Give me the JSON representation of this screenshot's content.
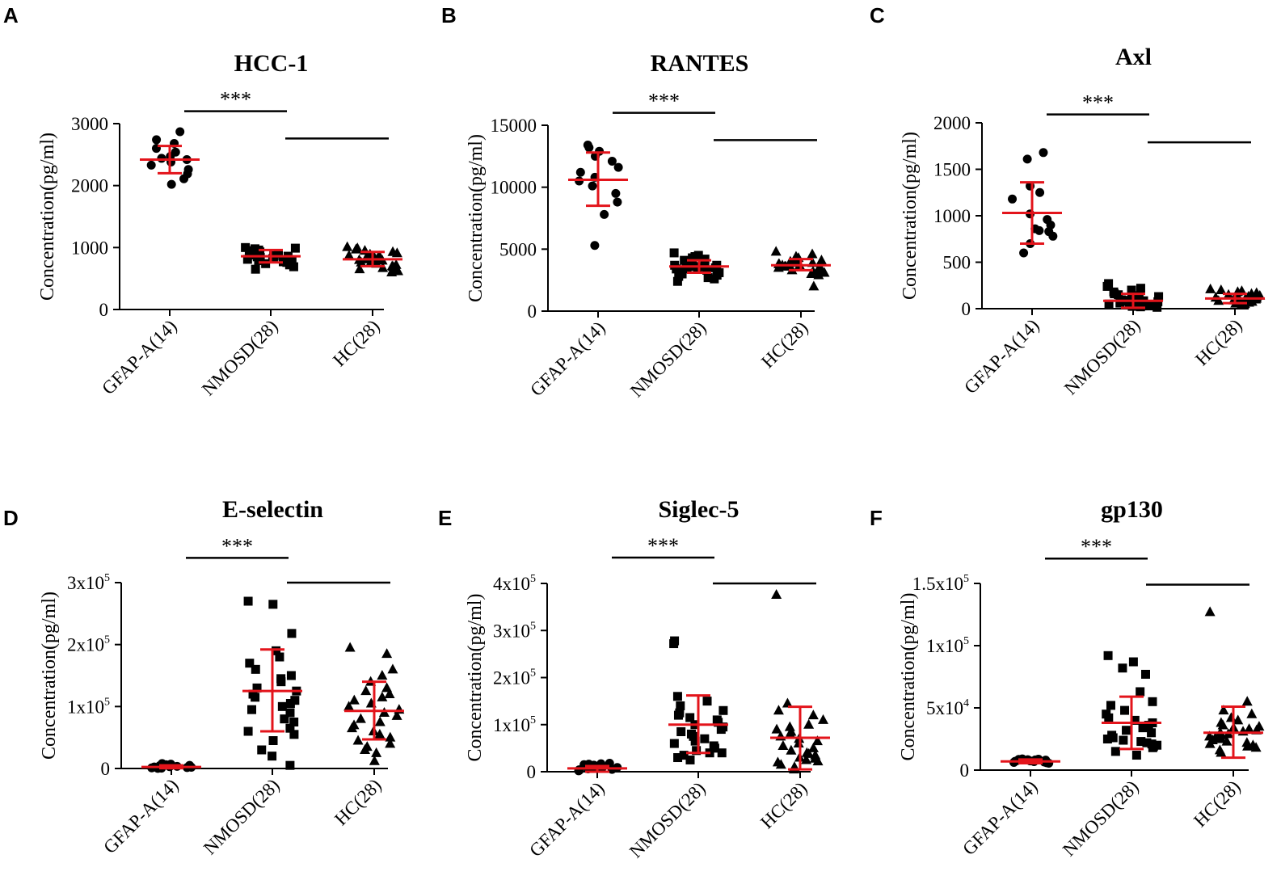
{
  "figure": {
    "colors": {
      "mean_sd": "#e3141b",
      "points": "#000000",
      "axis": "#000000"
    },
    "groups": [
      "GFAP-A(14)",
      "NMOSD(28)",
      "HC(28)"
    ],
    "significance": "***"
  },
  "chart_data": [
    {
      "panel": "A",
      "type": "scatter",
      "title": "HCC-1",
      "ylabel": "Concentration(pg/ml)",
      "xlabel": "",
      "ylim": [
        0,
        3000
      ],
      "yticks": [
        {
          "v": 0,
          "label": "0"
        },
        {
          "v": 1000,
          "label": "1000"
        },
        {
          "v": 2000,
          "label": "2000"
        },
        {
          "v": 3000,
          "label": "3000"
        }
      ],
      "categories": [
        "GFAP-A(14)",
        "NMOSD(28)",
        "HC(28)"
      ],
      "series": [
        {
          "name": "GFAP-A(14)",
          "marker": "circle",
          "mean": 2420,
          "sd_low": 2200,
          "sd_high": 2640,
          "values": [
            2870,
            2740,
            2680,
            2600,
            2540,
            2470,
            2440,
            2420,
            2380,
            2330,
            2260,
            2190,
            2110,
            2020
          ]
        },
        {
          "name": "NMOSD(28)",
          "marker": "square",
          "mean": 860,
          "sd_low": 760,
          "sd_high": 960,
          "values": [
            1000,
            990,
            980,
            960,
            950,
            930,
            920,
            910,
            900,
            890,
            880,
            870,
            860,
            860,
            850,
            840,
            830,
            820,
            810,
            800,
            790,
            780,
            770,
            760,
            740,
            720,
            690,
            650
          ]
        },
        {
          "name": "HC(28)",
          "marker": "triangle",
          "mean": 810,
          "sd_low": 700,
          "sd_high": 930,
          "values": [
            1010,
            990,
            970,
            950,
            930,
            910,
            890,
            870,
            860,
            850,
            840,
            830,
            820,
            810,
            800,
            790,
            780,
            770,
            760,
            740,
            720,
            700,
            690,
            670,
            650,
            640,
            620,
            600
          ]
        }
      ],
      "brackets": [
        {
          "from": 0,
          "to": 1,
          "label": "***",
          "value": 3200
        },
        {
          "from": 1,
          "to": 2,
          "label": "",
          "value": 2760
        }
      ]
    },
    {
      "panel": "B",
      "type": "scatter",
      "title": "RANTES",
      "ylabel": "Concentration(pg/ml)",
      "xlabel": "",
      "ylim": [
        0,
        15000
      ],
      "yticks": [
        {
          "v": 0,
          "label": "0"
        },
        {
          "v": 5000,
          "label": "5000"
        },
        {
          "v": 10000,
          "label": "10000"
        },
        {
          "v": 15000,
          "label": "15000"
        }
      ],
      "categories": [
        "GFAP-A(14)",
        "NMOSD(28)",
        "HC(28)"
      ],
      "series": [
        {
          "name": "GFAP-A(14)",
          "marker": "circle",
          "mean": 10600,
          "sd_low": 8500,
          "sd_high": 12800,
          "values": [
            13400,
            13200,
            12900,
            12500,
            12100,
            11600,
            11200,
            10800,
            10500,
            10100,
            9500,
            8800,
            7800,
            5300
          ]
        },
        {
          "name": "NMOSD(28)",
          "marker": "square",
          "mean": 3600,
          "sd_low": 3100,
          "sd_high": 4100,
          "values": [
            4700,
            4500,
            4400,
            4300,
            4200,
            4100,
            4000,
            3900,
            3900,
            3800,
            3700,
            3700,
            3600,
            3600,
            3500,
            3500,
            3400,
            3400,
            3300,
            3200,
            3200,
            3100,
            3000,
            2900,
            2800,
            2700,
            2600,
            2400
          ]
        },
        {
          "name": "HC(28)",
          "marker": "triangle",
          "mean": 3700,
          "sd_low": 3300,
          "sd_high": 4200,
          "values": [
            4800,
            4600,
            4400,
            4300,
            4200,
            4100,
            4000,
            4000,
            3900,
            3900,
            3800,
            3800,
            3700,
            3700,
            3700,
            3600,
            3600,
            3500,
            3500,
            3400,
            3400,
            3300,
            3300,
            3200,
            3100,
            3000,
            2900,
            2000
          ]
        }
      ],
      "brackets": [
        {
          "from": 0,
          "to": 1,
          "label": "***",
          "value": 16000
        },
        {
          "from": 1,
          "to": 2,
          "label": "",
          "value": 13800
        }
      ]
    },
    {
      "panel": "C",
      "type": "scatter",
      "title": "Axl",
      "ylabel": "Concentration(pg/ml)",
      "xlabel": "",
      "ylim": [
        0,
        2000
      ],
      "yticks": [
        {
          "v": 0,
          "label": "0"
        },
        {
          "v": 500,
          "label": "500"
        },
        {
          "v": 1000,
          "label": "1000"
        },
        {
          "v": 1500,
          "label": "1500"
        },
        {
          "v": 2000,
          "label": "2000"
        }
      ],
      "categories": [
        "GFAP-A(14)",
        "NMOSD(28)",
        "HC(28)"
      ],
      "series": [
        {
          "name": "GFAP-A(14)",
          "marker": "circle",
          "mean": 1030,
          "sd_low": 700,
          "sd_high": 1360,
          "values": [
            1680,
            1610,
            1320,
            1250,
            1180,
            1020,
            960,
            900,
            860,
            840,
            830,
            780,
            700,
            600
          ]
        },
        {
          "name": "NMOSD(28)",
          "marker": "square",
          "mean": 85,
          "sd_low": 10,
          "sd_high": 160,
          "values": [
            270,
            240,
            220,
            200,
            180,
            160,
            150,
            140,
            130,
            120,
            110,
            100,
            95,
            90,
            85,
            80,
            75,
            70,
            60,
            55,
            50,
            45,
            40,
            35,
            30,
            25,
            20,
            15
          ]
        },
        {
          "name": "HC(28)",
          "marker": "triangle",
          "mean": 110,
          "sd_low": 60,
          "sd_high": 160,
          "values": [
            210,
            200,
            190,
            180,
            170,
            160,
            150,
            140,
            140,
            130,
            130,
            120,
            120,
            110,
            110,
            100,
            100,
            95,
            90,
            85,
            80,
            75,
            70,
            65,
            60,
            55,
            50,
            40
          ]
        }
      ],
      "brackets": [
        {
          "from": 0,
          "to": 1,
          "label": "***",
          "value": 2090
        },
        {
          "from": 1,
          "to": 2,
          "label": "",
          "value": 1790
        }
      ]
    },
    {
      "panel": "D",
      "type": "scatter",
      "title": "E-selectin",
      "ylabel": "Concentration(pg/ml)",
      "xlabel": "",
      "ylim": [
        0,
        300000
      ],
      "yticks": [
        {
          "v": 0,
          "label": "0"
        },
        {
          "v": 100000,
          "label": "1x10",
          "sup": "5"
        },
        {
          "v": 200000,
          "label": "2x10",
          "sup": "5"
        },
        {
          "v": 300000,
          "label": "3x10",
          "sup": "5"
        }
      ],
      "categories": [
        "GFAP-A(14)",
        "NMOSD(28)",
        "HC(28)"
      ],
      "series": [
        {
          "name": "GFAP-A(14)",
          "marker": "circle",
          "mean": 2500,
          "sd_low": 500,
          "sd_high": 5000,
          "values": [
            8000,
            7000,
            6000,
            5000,
            4500,
            4000,
            3500,
            3000,
            2500,
            2000,
            1500,
            1000,
            500,
            200
          ]
        },
        {
          "name": "NMOSD(28)",
          "marker": "square",
          "mean": 125000,
          "sd_low": 60000,
          "sd_high": 192000,
          "values": [
            270000,
            265000,
            218000,
            190000,
            180000,
            170000,
            160000,
            150000,
            145000,
            140000,
            130000,
            125000,
            120000,
            115000,
            110000,
            105000,
            100000,
            95000,
            90000,
            80000,
            75000,
            65000,
            60000,
            55000,
            45000,
            30000,
            20000,
            5000
          ]
        },
        {
          "name": "HC(28)",
          "marker": "triangle",
          "mean": 93000,
          "sd_low": 47000,
          "sd_high": 140000,
          "values": [
            195000,
            185000,
            160000,
            150000,
            140000,
            130000,
            125000,
            120000,
            115000,
            110000,
            105000,
            100000,
            95000,
            90000,
            85000,
            80000,
            75000,
            70000,
            65000,
            60000,
            55000,
            50000,
            45000,
            40000,
            35000,
            30000,
            25000,
            12000
          ]
        }
      ],
      "brackets": [
        {
          "from": 0,
          "to": 1,
          "label": "***",
          "value": 340000
        },
        {
          "from": 1,
          "to": 2,
          "label": "",
          "value": 300000
        }
      ]
    },
    {
      "panel": "E",
      "type": "scatter",
      "title": "Siglec-5",
      "ylabel": "Concentration(pg/ml)",
      "xlabel": "",
      "ylim": [
        0,
        400000
      ],
      "yticks": [
        {
          "v": 0,
          "label": "0"
        },
        {
          "v": 100000,
          "label": "1x10",
          "sup": "5"
        },
        {
          "v": 200000,
          "label": "2x10",
          "sup": "5"
        },
        {
          "v": 300000,
          "label": "3x10",
          "sup": "5"
        },
        {
          "v": 400000,
          "label": "4x10",
          "sup": "5"
        }
      ],
      "categories": [
        "GFAP-A(14)",
        "NMOSD(28)",
        "HC(28)"
      ],
      "series": [
        {
          "name": "GFAP-A(14)",
          "marker": "circle",
          "mean": 7000,
          "sd_low": 0,
          "sd_high": 12000,
          "values": [
            18000,
            17000,
            16000,
            15000,
            14000,
            12000,
            10000,
            9000,
            8000,
            6000,
            5000,
            4000,
            3000,
            2000
          ]
        },
        {
          "name": "NMOSD(28)",
          "marker": "square",
          "mean": 100000,
          "sd_low": 40000,
          "sd_high": 162000,
          "values": [
            278000,
            272000,
            160000,
            150000,
            140000,
            130000,
            125000,
            120000,
            115000,
            110000,
            105000,
            100000,
            95000,
            90000,
            85000,
            80000,
            75000,
            70000,
            65000,
            60000,
            55000,
            50000,
            45000,
            40000,
            35000,
            30000,
            25000,
            40000
          ]
        },
        {
          "name": "HC(28)",
          "marker": "triangle",
          "mean": 72000,
          "sd_low": 5000,
          "sd_high": 138000,
          "values": [
            376000,
            145000,
            130000,
            120000,
            110000,
            100000,
            95000,
            90000,
            85000,
            80000,
            75000,
            70000,
            65000,
            60000,
            55000,
            50000,
            45000,
            40000,
            38000,
            35000,
            30000,
            28000,
            25000,
            22000,
            20000,
            15000,
            10000,
            5000
          ]
        }
      ],
      "brackets": [
        {
          "from": 0,
          "to": 1,
          "label": "***",
          "value": 455000
        },
        {
          "from": 1,
          "to": 2,
          "label": "",
          "value": 400000
        }
      ]
    },
    {
      "panel": "F",
      "type": "scatter",
      "title": "gp130",
      "ylabel": "Concentration(pg/ml)",
      "xlabel": "",
      "ylim": [
        0,
        150000
      ],
      "yticks": [
        {
          "v": 0,
          "label": "0"
        },
        {
          "v": 50000,
          "label": "5x10",
          "sup": "4"
        },
        {
          "v": 100000,
          "label": "1x10",
          "sup": "5"
        },
        {
          "v": 150000,
          "label": "1.5x10",
          "sup": "5"
        }
      ],
      "categories": [
        "GFAP-A(14)",
        "NMOSD(28)",
        "HC(28)"
      ],
      "series": [
        {
          "name": "GFAP-A(14)",
          "marker": "circle",
          "mean": 7000,
          "sd_low": 5500,
          "sd_high": 8500,
          "values": [
            9000,
            8800,
            8600,
            8400,
            8200,
            8000,
            7700,
            7400,
            7100,
            6800,
            6500,
            6200,
            5900,
            5500
          ]
        },
        {
          "name": "NMOSD(28)",
          "marker": "square",
          "mean": 38000,
          "sd_low": 17000,
          "sd_high": 59000,
          "values": [
            92000,
            87000,
            82000,
            77000,
            63000,
            55000,
            52000,
            48000,
            45000,
            42000,
            40000,
            38000,
            36000,
            34000,
            32000,
            30000,
            28000,
            26000,
            25000,
            24000,
            23000,
            22000,
            21000,
            20000,
            19000,
            18000,
            15000,
            12000
          ]
        },
        {
          "name": "HC(28)",
          "marker": "triangle",
          "mean": 30000,
          "sd_low": 10000,
          "sd_high": 51000,
          "values": [
            127000,
            55000,
            48000,
            45000,
            42000,
            40000,
            38000,
            36000,
            35000,
            34000,
            33000,
            32000,
            31000,
            30000,
            29000,
            28000,
            27000,
            26000,
            25000,
            24000,
            23000,
            22000,
            21000,
            20000,
            19000,
            18000,
            16000,
            14000
          ]
        }
      ],
      "brackets": [
        {
          "from": 0,
          "to": 1,
          "label": "***",
          "value": 170000
        },
        {
          "from": 1,
          "to": 2,
          "label": "",
          "value": 149000
        }
      ]
    }
  ]
}
